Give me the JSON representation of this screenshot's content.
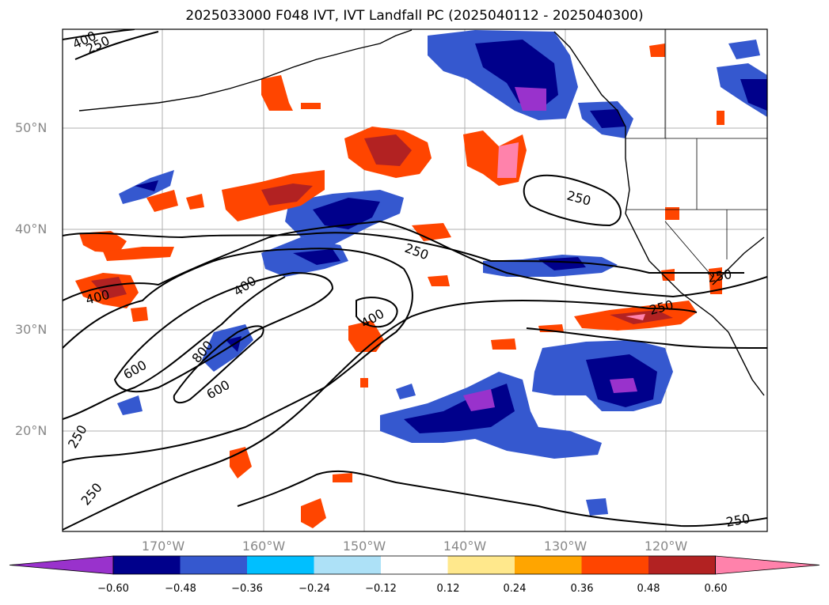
{
  "title": "2025033000 F048 IVT, IVT Landfall PC (2025040112 - 2025040300)",
  "map": {
    "projection": "equirectangular",
    "lon_range": [
      -180,
      -110
    ],
    "lat_range": [
      10,
      60
    ],
    "grid": true,
    "lat_labels": [
      "50°N",
      "40°N",
      "30°N",
      "20°N"
    ],
    "lon_labels": [
      "170°W",
      "160°W",
      "150°W",
      "140°W",
      "130°W",
      "120°W"
    ],
    "contour_labels": [
      "400",
      "250",
      "250",
      "250",
      "400",
      "400",
      "600",
      "800",
      "400",
      "600",
      "250",
      "250",
      "250",
      "250",
      "250"
    ],
    "contour_color": "#000000",
    "coastline_color": "#000000"
  },
  "colorbar": {
    "ticks": [
      "−0.60",
      "−0.48",
      "−0.36",
      "−0.24",
      "−0.12",
      "0.12",
      "0.24",
      "0.36",
      "0.48",
      "0.60"
    ],
    "colors": [
      "#9932CC",
      "#00008B",
      "#3558CF",
      "#00BFFF",
      "#ADE1F7",
      "#FFFFFF",
      "#FFE88C",
      "#FFA500",
      "#FF4500",
      "#B22222",
      "#FF82AB"
    ],
    "extend": "both"
  }
}
